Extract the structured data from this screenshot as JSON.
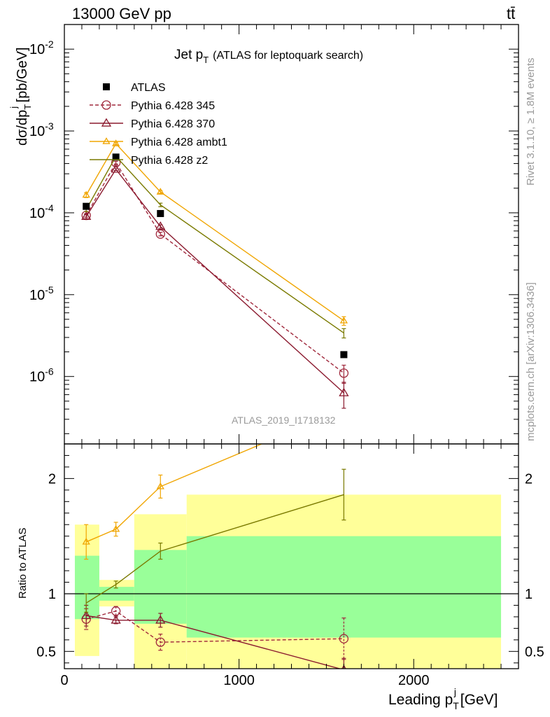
{
  "header": {
    "energy_label": "13000 GeV pp",
    "process_label": "tt̄"
  },
  "side_labels": {
    "rivet": "Rivet 3.1.10, ≥ 1.8M events",
    "mcplots": "mcplots.cern.ch [arXiv:1306.3436]"
  },
  "chart_data": [
    {
      "type": "line",
      "title_main": "Jet p",
      "title_sub": "T",
      "title_rest": "(ATLAS for leptoquark search)",
      "ylabel": "dσ/dp_T^j [pb/GeV]",
      "ylabel_parts": {
        "a": "dσ/dp",
        "b": "T",
        "c": "j",
        "d": " [pb/GeV]"
      },
      "yscale": "log",
      "ylim": [
        1.5e-07,
        0.02
      ],
      "xlim": [
        0,
        2600
      ],
      "y_ticks": [
        {
          "v": 1e-06,
          "base": "10",
          "exp": "-6"
        },
        {
          "v": 1e-05,
          "base": "10",
          "exp": "-5"
        },
        {
          "v": 0.0001,
          "base": "10",
          "exp": "-4"
        },
        {
          "v": 0.001,
          "base": "10",
          "exp": "-3"
        },
        {
          "v": 0.01,
          "base": "10",
          "exp": "-2"
        }
      ],
      "analysis_id": "ATLAS_2019_I1718132",
      "legend_position": "top-left",
      "data_points": {
        "name": "ATLAS",
        "x": [
          125,
          295,
          550,
          1600
        ],
        "y": [
          0.00012,
          0.00048,
          9.8e-05,
          1.85e-06
        ]
      },
      "series": [
        {
          "name": "Pythia 6.428 345",
          "color": "#a0283c",
          "marker": "circle",
          "dashed": true,
          "x": [
            125,
            295,
            550,
            1600
          ],
          "y": [
            9.3e-05,
            0.00041,
            5.5e-05,
            1.1e-06
          ],
          "err": [
            0.05,
            0.04,
            0.05,
            0.25
          ]
        },
        {
          "name": "Pythia 6.428 370",
          "color": "#8b1a2f",
          "marker": "triangle",
          "dashed": false,
          "x": [
            125,
            295,
            550,
            1600
          ],
          "y": [
            9e-05,
            0.00034,
            6.8e-05,
            6.3e-07
          ],
          "err": [
            0.06,
            0.03,
            0.05,
            0.35
          ]
        },
        {
          "name": "Pythia 6.428 ambt1",
          "color": "#f0a500",
          "marker": "triangle",
          "dashed": false,
          "x": [
            125,
            295,
            550,
            1600
          ],
          "y": [
            0.000165,
            0.0007,
            0.00018,
            4.8e-06
          ],
          "err": [
            0.07,
            0.03,
            0.04,
            0.12
          ]
        },
        {
          "name": "Pythia 6.428 z2",
          "color": "#7a7a00",
          "marker": "none",
          "dashed": false,
          "x": [
            125,
            295,
            550,
            1600
          ],
          "y": [
            0.00011,
            0.00049,
            0.000125,
            3.4e-06
          ],
          "err": [
            0.06,
            0.03,
            0.05,
            0.13
          ]
        }
      ]
    },
    {
      "type": "line",
      "ylabel": "Ratio to ATLAS",
      "xlabel_parts": {
        "a": "Leading p",
        "b": "T",
        "c": "j",
        "d": " [GeV]"
      },
      "ylim": [
        0.35,
        2.3
      ],
      "xlim": [
        0,
        2600
      ],
      "x_ticks": [
        0,
        1000,
        2000
      ],
      "y_ticks_left": [
        0.5,
        1,
        2
      ],
      "y_ticks_right": [
        0.5,
        1,
        2
      ],
      "bands": [
        {
          "x0": 60,
          "x1": 200,
          "yellow": [
            0.46,
            1.6
          ],
          "green": [
            0.78,
            1.33
          ]
        },
        {
          "x0": 200,
          "x1": 400,
          "yellow": [
            0.89,
            1.12
          ],
          "green": [
            0.94,
            1.06
          ]
        },
        {
          "x0": 400,
          "x1": 700,
          "yellow": [
            0.35,
            1.69
          ],
          "green": [
            0.74,
            1.38
          ]
        },
        {
          "x0": 700,
          "x1": 2500,
          "yellow": [
            0.35,
            1.86
          ],
          "green": [
            0.62,
            1.5
          ]
        }
      ],
      "series": [
        {
          "name": "Pythia 6.428 345",
          "x": [
            125,
            295,
            550,
            1600
          ],
          "y": [
            0.78,
            0.85,
            0.58,
            0.61
          ],
          "err": [
            0.09,
            0.04,
            0.07,
            0.18
          ]
        },
        {
          "name": "Pythia 6.428 370",
          "x": [
            125,
            295,
            550,
            1600
          ],
          "y": [
            0.81,
            0.77,
            0.77,
            0.34
          ],
          "err": [
            0.09,
            0.03,
            0.06,
            0.1
          ]
        },
        {
          "name": "Pythia 6.428 ambt1",
          "x": [
            125,
            295,
            550,
            1600
          ],
          "y": [
            1.45,
            1.56,
            1.93,
            2.6
          ],
          "err": [
            0.15,
            0.06,
            0.1,
            0.3
          ]
        },
        {
          "name": "Pythia 6.428 z2",
          "x": [
            125,
            295,
            550,
            1600
          ],
          "y": [
            0.92,
            1.08,
            1.37,
            1.86
          ],
          "err": [
            0.08,
            0.03,
            0.07,
            0.22
          ]
        }
      ]
    }
  ]
}
